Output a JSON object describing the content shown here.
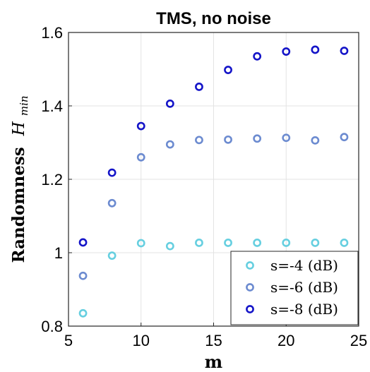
{
  "chart_data": {
    "type": "scatter",
    "title": "TMS, no noise",
    "xlabel": "m",
    "ylabel": "Randomness",
    "ylabel_symbol": "H",
    "ylabel_subscript": "min",
    "xlim": [
      5,
      25
    ],
    "ylim": [
      0.8,
      1.6
    ],
    "xticks": [
      "5",
      "10",
      "15",
      "20",
      "25"
    ],
    "yticks": [
      "0.8",
      "1",
      "1.2",
      "1.4",
      "1.6"
    ],
    "grid": true,
    "legend_position": "bottom-right",
    "x": [
      6,
      8,
      10,
      12,
      14,
      16,
      18,
      20,
      22,
      24
    ],
    "series": [
      {
        "name": "s=-4 (dB)",
        "color": "#66cfe0",
        "values": [
          0.835,
          0.992,
          1.026,
          1.018,
          1.027,
          1.027,
          1.027,
          1.027,
          1.027,
          1.027
        ]
      },
      {
        "name": "s=-6 (dB)",
        "color": "#6c8bd0",
        "values": [
          0.937,
          1.135,
          1.26,
          1.295,
          1.307,
          1.308,
          1.311,
          1.313,
          1.306,
          1.315
        ]
      },
      {
        "name": "s=-8 (dB)",
        "color": "#1414c8",
        "values": [
          1.028,
          1.218,
          1.345,
          1.406,
          1.452,
          1.498,
          1.535,
          1.548,
          1.553,
          1.55
        ]
      }
    ]
  }
}
